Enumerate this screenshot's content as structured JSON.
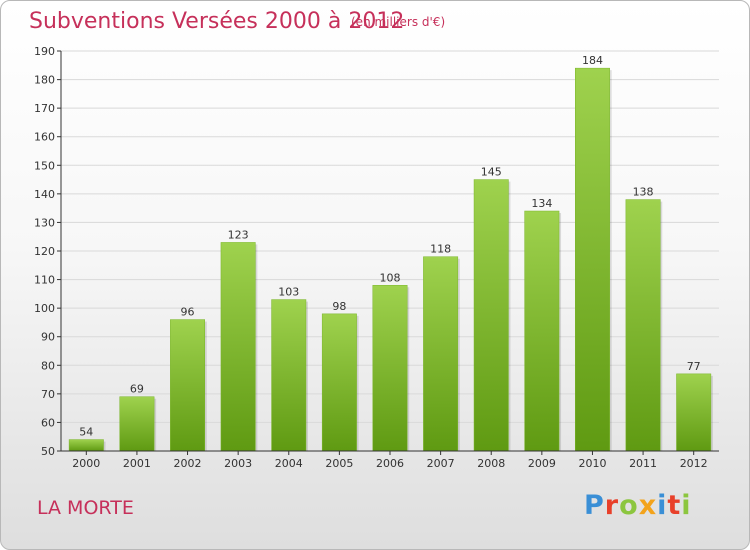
{
  "header": {
    "title": "Subventions Versées 2000 à 2012",
    "subtitle": "(en milliers d'€)"
  },
  "footer": {
    "commune": "LA MORTE",
    "logo_text": "Proxiti",
    "logo_colors": [
      "#3a8fd6",
      "#e8402a",
      "#8cc63f",
      "#f3a31b",
      "#3a8fd6",
      "#e8402a",
      "#8cc63f"
    ]
  },
  "colors": {
    "bar_top": "#9fd24e",
    "bar_bottom": "#5f9a12",
    "grid": "#d9d9d9",
    "axis": "#333333"
  },
  "chart_data": {
    "type": "bar",
    "title": "Subventions Versées 2000 à 2012",
    "subtitle": "(en milliers d'€)",
    "categories": [
      "2000",
      "2001",
      "2002",
      "2003",
      "2004",
      "2005",
      "2006",
      "2007",
      "2008",
      "2009",
      "2010",
      "2011",
      "2012"
    ],
    "values": [
      54,
      69,
      96,
      123,
      103,
      98,
      108,
      118,
      145,
      134,
      184,
      138,
      77
    ],
    "ylim": [
      50,
      190
    ],
    "yticks": [
      50,
      60,
      70,
      80,
      90,
      100,
      110,
      120,
      130,
      140,
      150,
      160,
      170,
      180,
      190
    ],
    "grid": true,
    "data_labels": true
  }
}
